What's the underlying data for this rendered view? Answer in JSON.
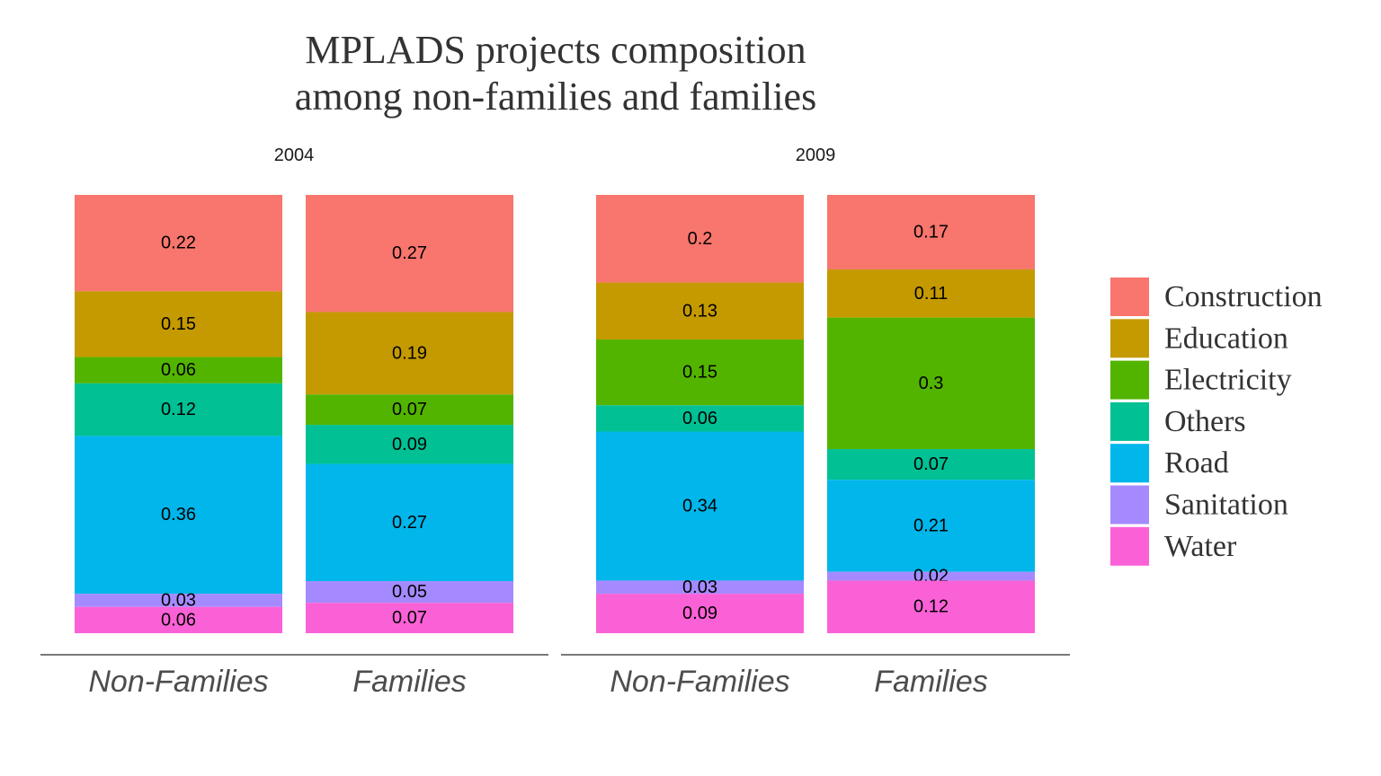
{
  "title_lines": [
    "MPLADS projects composition",
    "among non-families and families"
  ],
  "chart_data": {
    "type": "bar",
    "stacked": true,
    "title": "MPLADS projects composition among non-families and families",
    "xlabel": "",
    "ylabel": "",
    "ylim": [
      0,
      1
    ],
    "grid": false,
    "legend_position": "right",
    "categories": [
      "Non-Families",
      "Families"
    ],
    "legend": [
      {
        "name": "Construction",
        "color": "#F8766D"
      },
      {
        "name": "Education",
        "color": "#C49A00"
      },
      {
        "name": "Electricity",
        "color": "#53B400"
      },
      {
        "name": "Others",
        "color": "#00C094"
      },
      {
        "name": "Road",
        "color": "#00B6EB"
      },
      {
        "name": "Sanitation",
        "color": "#A58AFF"
      },
      {
        "name": "Water",
        "color": "#FB61D7"
      }
    ],
    "panels": [
      {
        "strip": "2004",
        "series": [
          {
            "name": "Construction",
            "values": [
              0.22,
              0.27
            ]
          },
          {
            "name": "Education",
            "values": [
              0.15,
              0.19
            ]
          },
          {
            "name": "Electricity",
            "values": [
              0.06,
              0.07
            ]
          },
          {
            "name": "Others",
            "values": [
              0.12,
              0.09
            ]
          },
          {
            "name": "Road",
            "values": [
              0.36,
              0.27
            ]
          },
          {
            "name": "Sanitation",
            "values": [
              0.03,
              0.05
            ]
          },
          {
            "name": "Water",
            "values": [
              0.06,
              0.07
            ]
          }
        ]
      },
      {
        "strip": "2009",
        "series": [
          {
            "name": "Construction",
            "values": [
              0.2,
              0.17
            ]
          },
          {
            "name": "Education",
            "values": [
              0.13,
              0.11
            ]
          },
          {
            "name": "Electricity",
            "values": [
              0.15,
              0.3
            ]
          },
          {
            "name": "Others",
            "values": [
              0.06,
              0.07
            ]
          },
          {
            "name": "Road",
            "values": [
              0.34,
              0.21
            ]
          },
          {
            "name": "Sanitation",
            "values": [
              0.03,
              0.02
            ]
          },
          {
            "name": "Water",
            "values": [
              0.09,
              0.12
            ]
          }
        ]
      }
    ]
  }
}
